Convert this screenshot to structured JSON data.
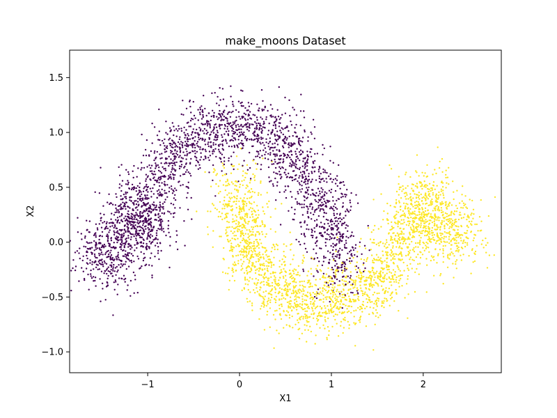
{
  "chart_data": {
    "type": "scatter",
    "title": "make_moons Dataset",
    "xlabel": "X1",
    "ylabel": "X2",
    "xlim": [
      -1.85,
      2.85
    ],
    "ylim": [
      -1.19,
      1.75
    ],
    "xticks": [
      -1,
      0,
      1,
      2
    ],
    "xtick_labels": [
      "−1",
      "0",
      "1",
      "2"
    ],
    "yticks": [
      -1.0,
      -0.5,
      0.0,
      0.5,
      1.0,
      1.5
    ],
    "ytick_labels": [
      "−1.0",
      "−0.5",
      "0.0",
      "0.5",
      "1.0",
      "1.5"
    ],
    "grid": false,
    "legend": "none",
    "series": [
      {
        "color": "#440154",
        "description_points": [
          [
            -1.7,
            -0.05
          ],
          [
            -1.4,
            -0.25
          ],
          [
            -1.3,
            0.0
          ],
          [
            -1.2,
            0.35
          ],
          [
            -1.0,
            0.05
          ],
          [
            -0.9,
            0.5
          ],
          [
            -0.8,
            0.7
          ],
          [
            -0.6,
            0.9
          ],
          [
            -0.4,
            1.0
          ],
          [
            -0.2,
            1.05
          ],
          [
            0.0,
            1.05
          ],
          [
            0.2,
            1.0
          ],
          [
            0.4,
            0.95
          ],
          [
            0.6,
            0.75
          ],
          [
            0.8,
            0.55
          ],
          [
            0.9,
            0.3
          ],
          [
            1.0,
            0.15
          ],
          [
            1.05,
            -0.05
          ],
          [
            1.1,
            -0.3
          ]
        ],
        "noise": 0.15,
        "count": 2600
      },
      {
        "color": "#fde725",
        "description_points": [
          [
            0.0,
            0.55
          ],
          [
            0.0,
            0.2
          ],
          [
            0.1,
            -0.05
          ],
          [
            0.3,
            -0.3
          ],
          [
            0.5,
            -0.45
          ],
          [
            0.8,
            -0.55
          ],
          [
            1.0,
            -0.5
          ],
          [
            1.3,
            -0.45
          ],
          [
            1.5,
            -0.35
          ],
          [
            1.7,
            -0.1
          ],
          [
            1.85,
            0.1
          ],
          [
            1.95,
            0.3
          ],
          [
            2.0,
            0.45
          ],
          [
            2.1,
            0.2
          ],
          [
            2.3,
            0.0
          ],
          [
            2.5,
            0.2
          ]
        ],
        "noise": 0.15,
        "count": 2600
      }
    ]
  }
}
